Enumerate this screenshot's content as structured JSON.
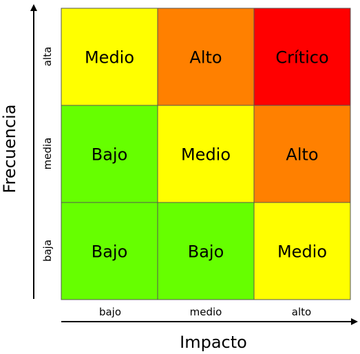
{
  "x_axis": {
    "title": "Impacto",
    "ticks": [
      "bajo",
      "medio",
      "alto"
    ]
  },
  "y_axis": {
    "title": "Frecuencia",
    "ticks": [
      "baja",
      "media",
      "alta"
    ]
  },
  "colors": {
    "Bajo": "#66ff00",
    "Medio": "#ffff00",
    "Alto": "#ff8000",
    "Crítico": "#ff0000",
    "grid_border": "#555555",
    "axis": "#000000"
  },
  "matrix": {
    "rows_top_to_bottom": [
      [
        "Medio",
        "Alto",
        "Crítico"
      ],
      [
        "Bajo",
        "Medio",
        "Alto"
      ],
      [
        "Bajo",
        "Bajo",
        "Medio"
      ]
    ]
  }
}
